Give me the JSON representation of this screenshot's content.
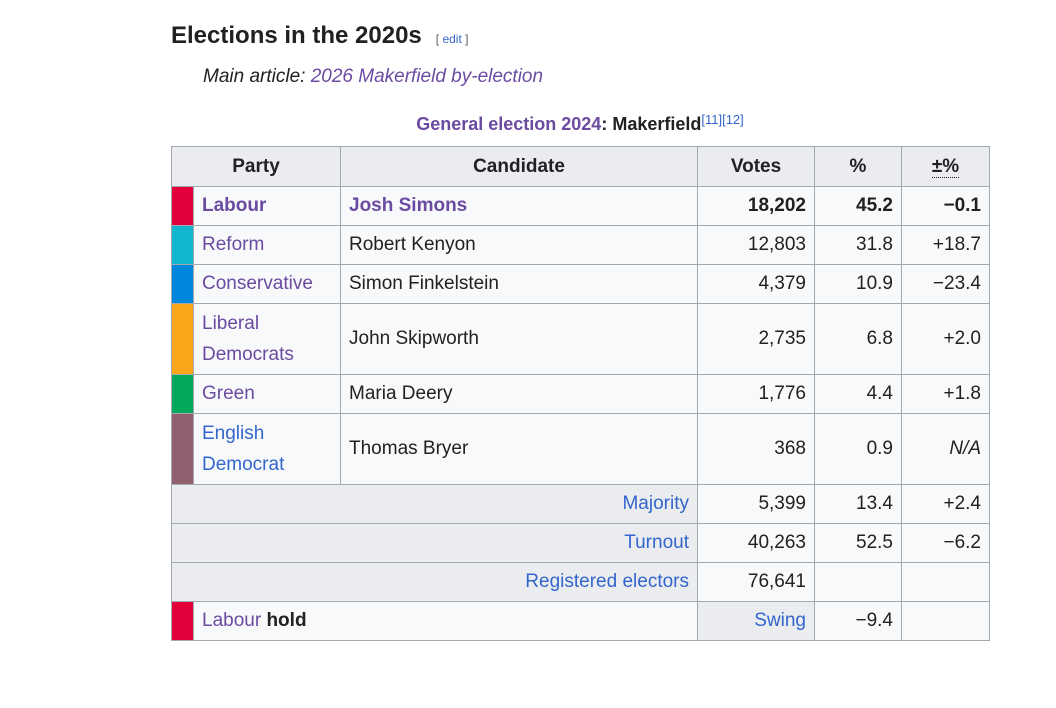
{
  "section": {
    "title": "Elections in the 2020s",
    "edit_open": "[ ",
    "edit_label": "edit",
    "edit_close": " ]"
  },
  "hatnote": {
    "prefix": "Main article: ",
    "link": "2026 Makerfield by-election"
  },
  "caption": {
    "link": "General election 2024",
    "separator": ": ",
    "constituency": "Makerfield",
    "ref1": "[11]",
    "ref2": "[12]"
  },
  "headers": {
    "party": "Party",
    "candidate": "Candidate",
    "votes": "Votes",
    "pct": "%",
    "change": "±%"
  },
  "rows": [
    {
      "party": "Labour",
      "candidate": "Josh Simons",
      "votes": "18,202",
      "pct": "45.2",
      "change": "−0.1",
      "color": "#E4003B"
    },
    {
      "party": "Reform",
      "candidate": "Robert Kenyon",
      "votes": "12,803",
      "pct": "31.8",
      "change": "+18.7",
      "color": "#12B6CF"
    },
    {
      "party": "Conservative",
      "candidate": "Simon Finkelstein",
      "votes": "4,379",
      "pct": "10.9",
      "change": "−23.4",
      "color": "#0087DC"
    },
    {
      "party_line1": "Liberal",
      "party_line2": "Democrats",
      "candidate": "John Skipworth",
      "votes": "2,735",
      "pct": "6.8",
      "change": "+2.0",
      "color": "#FAA61A"
    },
    {
      "party": "Green",
      "candidate": "Maria Deery",
      "votes": "1,776",
      "pct": "4.4",
      "change": "+1.8",
      "color": "#02A95B"
    },
    {
      "party_line1": "English",
      "party_line2": "Democrat",
      "candidate": "Thomas Bryer",
      "votes": "368",
      "pct": "0.9",
      "change": "N/A",
      "color": "#915F6D"
    }
  ],
  "majority": {
    "label": "Majority",
    "votes": "5,399",
    "pct": "13.4",
    "change": "+2.4"
  },
  "turnout": {
    "label": "Turnout",
    "votes": "40,263",
    "pct": "52.5",
    "change": "−6.2"
  },
  "electors": {
    "label": "Registered electors",
    "votes": "76,641"
  },
  "hold": {
    "party": "Labour",
    "word": "hold",
    "swing_label": "Swing",
    "swing": "−9.4",
    "color": "#E4003B"
  }
}
